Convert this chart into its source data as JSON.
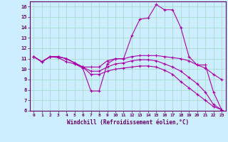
{
  "xlabel": "Windchill (Refroidissement éolien,°C)",
  "bg_color": "#cceeff",
  "grid_color": "#aaddcc",
  "line_color": "#aa00aa",
  "xlim": [
    -0.5,
    23.5
  ],
  "ylim": [
    6,
    16.5
  ],
  "xticks": [
    0,
    1,
    2,
    3,
    4,
    5,
    6,
    7,
    8,
    9,
    10,
    11,
    12,
    13,
    14,
    15,
    16,
    17,
    18,
    19,
    20,
    21,
    22,
    23
  ],
  "yticks": [
    6,
    7,
    8,
    9,
    10,
    11,
    12,
    13,
    14,
    15,
    16
  ],
  "series": [
    [
      11.2,
      10.7,
      11.2,
      11.1,
      10.7,
      10.5,
      10.1,
      7.9,
      7.9,
      10.5,
      11.0,
      11.0,
      13.2,
      14.8,
      14.9,
      16.2,
      15.7,
      15.7,
      14.0,
      11.2,
      10.4,
      10.4,
      7.8,
      6.1
    ],
    [
      11.2,
      10.7,
      11.2,
      11.2,
      11.0,
      10.6,
      10.2,
      10.2,
      10.2,
      10.8,
      11.0,
      11.0,
      11.2,
      11.3,
      11.3,
      11.3,
      11.2,
      11.1,
      11.0,
      10.8,
      10.4,
      10.1,
      9.5,
      9.0
    ],
    [
      11.2,
      10.7,
      11.2,
      11.2,
      11.0,
      10.6,
      10.2,
      9.8,
      9.8,
      10.2,
      10.5,
      10.6,
      10.8,
      10.9,
      10.9,
      10.8,
      10.5,
      10.2,
      9.8,
      9.2,
      8.6,
      7.8,
      6.6,
      6.1
    ],
    [
      11.2,
      10.7,
      11.2,
      11.2,
      11.0,
      10.6,
      10.2,
      9.5,
      9.5,
      9.8,
      10.0,
      10.1,
      10.2,
      10.3,
      10.3,
      10.2,
      9.9,
      9.5,
      8.8,
      8.2,
      7.6,
      7.0,
      6.4,
      6.1
    ]
  ]
}
